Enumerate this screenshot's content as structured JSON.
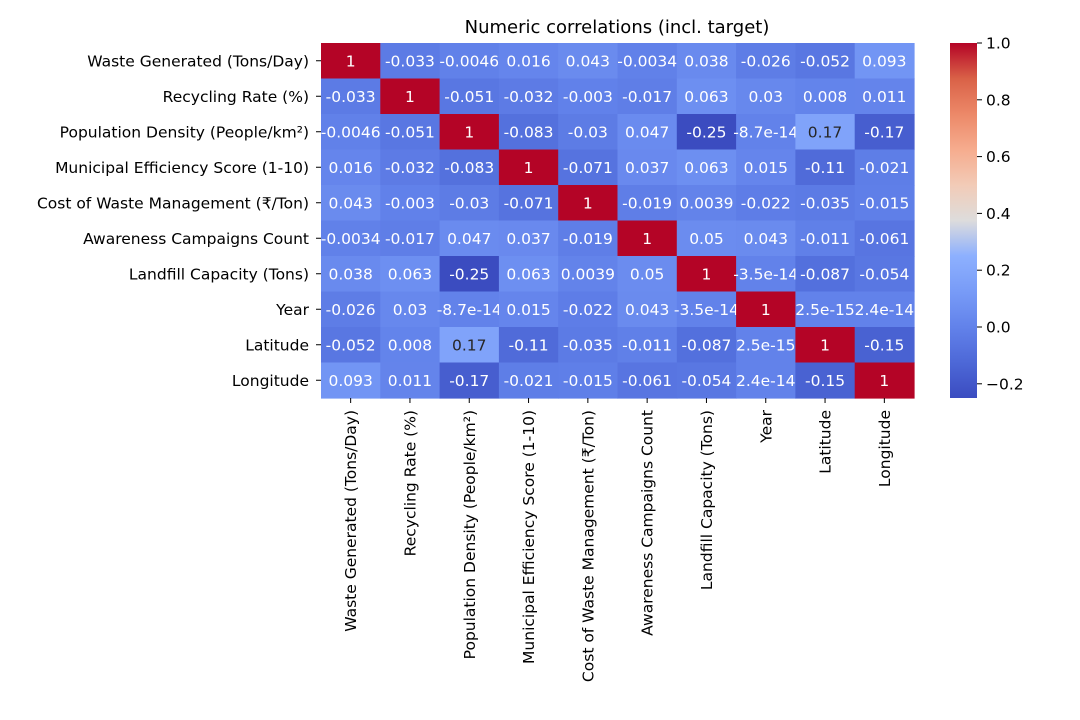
{
  "chart_data": {
    "type": "heatmap",
    "title": "Numeric correlations (incl. target)",
    "rows": [
      "Waste Generated (Tons/Day)",
      "Recycling Rate (%)",
      "Population Density (People/km²)",
      "Municipal Efficiency Score (1-10)",
      "Cost of Waste Management (₹/Ton)",
      "Awareness Campaigns Count",
      "Landfill Capacity (Tons)",
      "Year",
      "Latitude",
      "Longitude"
    ],
    "columns": [
      "Waste Generated (Tons/Day)",
      "Recycling Rate (%)",
      "Population Density (People/km²)",
      "Municipal Efficiency Score (1-10)",
      "Cost of Waste Management (₹/Ton)",
      "Awareness Campaigns Count",
      "Landfill Capacity (Tons)",
      "Year",
      "Latitude",
      "Longitude"
    ],
    "values": [
      [
        1,
        -0.033,
        -0.0046,
        0.016,
        0.043,
        -0.0034,
        0.038,
        -0.026,
        -0.052,
        0.093
      ],
      [
        -0.033,
        1,
        -0.051,
        -0.032,
        -0.003,
        -0.017,
        0.063,
        0.03,
        0.008,
        0.011
      ],
      [
        -0.0046,
        -0.051,
        1,
        -0.083,
        -0.03,
        0.047,
        -0.25,
        -8.7e-14,
        0.17,
        -0.17
      ],
      [
        0.016,
        -0.032,
        -0.083,
        1,
        -0.071,
        0.037,
        0.063,
        0.015,
        -0.11,
        -0.021
      ],
      [
        0.043,
        -0.003,
        -0.03,
        -0.071,
        1,
        -0.019,
        0.0039,
        -0.022,
        -0.035,
        -0.015
      ],
      [
        -0.0034,
        -0.017,
        0.047,
        0.037,
        -0.019,
        1,
        0.05,
        0.043,
        -0.011,
        -0.061
      ],
      [
        0.038,
        0.063,
        -0.25,
        0.063,
        0.0039,
        0.05,
        1,
        -3.5e-14,
        -0.087,
        -0.054
      ],
      [
        -0.026,
        0.03,
        -8.7e-14,
        0.015,
        -0.022,
        0.043,
        -3.5e-14,
        1,
        2.5e-15,
        2.4e-14
      ],
      [
        -0.052,
        0.008,
        0.17,
        -0.11,
        -0.035,
        -0.011,
        -0.087,
        2.5e-15,
        1,
        -0.15
      ],
      [
        0.093,
        0.011,
        -0.17,
        -0.021,
        -0.015,
        -0.061,
        -0.054,
        2.4e-14,
        -0.15,
        1
      ]
    ],
    "cell_labels": [
      [
        "1",
        "-0.033",
        "-0.0046",
        "0.016",
        "0.043",
        "-0.0034",
        "0.038",
        "-0.026",
        "-0.052",
        "0.093"
      ],
      [
        "-0.033",
        "1",
        "-0.051",
        "-0.032",
        "-0.003",
        "-0.017",
        "0.063",
        "0.03",
        "0.008",
        "0.011"
      ],
      [
        "-0.0046",
        "-0.051",
        "1",
        "-0.083",
        "-0.03",
        "0.047",
        "-0.25",
        "-8.7e-14",
        "0.17",
        "-0.17"
      ],
      [
        "0.016",
        "-0.032",
        "-0.083",
        "1",
        "-0.071",
        "0.037",
        "0.063",
        "0.015",
        "-0.11",
        "-0.021"
      ],
      [
        "0.043",
        "-0.003",
        "-0.03",
        "-0.071",
        "1",
        "-0.019",
        "0.0039",
        "-0.022",
        "-0.035",
        "-0.015"
      ],
      [
        "-0.0034",
        "-0.017",
        "0.047",
        "0.037",
        "-0.019",
        "1",
        "0.05",
        "0.043",
        "-0.011",
        "-0.061"
      ],
      [
        "0.038",
        "0.063",
        "-0.25",
        "0.063",
        "0.0039",
        "0.05",
        "1",
        "-3.5e-14",
        "-0.087",
        "-0.054"
      ],
      [
        "-0.026",
        "0.03",
        "-8.7e-14",
        "0.015",
        "-0.022",
        "0.043",
        "-3.5e-14",
        "1",
        "2.5e-15",
        "2.4e-14"
      ],
      [
        "-0.052",
        "0.008",
        "0.17",
        "-0.11",
        "-0.035",
        "-0.011",
        "-0.087",
        "2.5e-15",
        "1",
        "-0.15"
      ],
      [
        "0.093",
        "0.011",
        "-0.17",
        "-0.021",
        "-0.015",
        "-0.061",
        "-0.054",
        "2.4e-14",
        "-0.15",
        "1"
      ]
    ],
    "colormap": "coolwarm",
    "color_range": [
      -0.25,
      1
    ],
    "colorbar": {
      "ticks": [
        -0.2,
        0.0,
        0.2,
        0.4,
        0.6,
        0.8,
        1.0
      ],
      "tick_labels": [
        "−0.2",
        "0.0",
        "0.2",
        "0.4",
        "0.6",
        "0.8",
        "1.0"
      ],
      "placement": "right"
    },
    "grid": false
  }
}
